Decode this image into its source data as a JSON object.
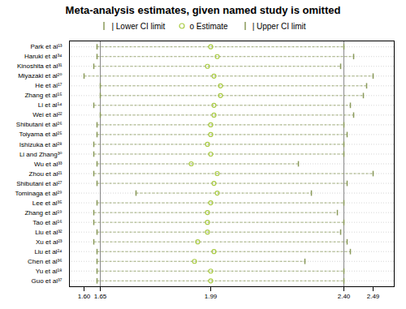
{
  "chart_data": {
    "type": "forest",
    "title": "Meta-analysis estimates, given named study is omitted",
    "orientation": "horizontal",
    "categories": [
      "Park et al¹³",
      "Haruki et al³⁴",
      "Kinoshita et al³¹",
      "Miyazaki et al²⁰",
      "He et al¹⁷",
      "Zhang et al¹⁵",
      "Li et al¹⁴",
      "Wei et al²²",
      "Shibutani et al²⁶",
      "Toiyama et al²⁵",
      "Ishizuka et al²⁸",
      "Li and Zhang³⁰",
      "Wu et al³³",
      "Zhou et al²¹",
      "Shibutani et al²⁷",
      "Tominaga et al²⁹",
      "Lee et al³⁵",
      "Zhang et al¹⁹",
      "Tao et al¹⁶",
      "Liu et al³²",
      "Xu et al²³",
      "Liu et al²⁴",
      "Chen et al³⁶",
      "Yu et al¹⁸",
      "Guo et al³⁷"
    ],
    "series": [
      {
        "name": "| Lower CI limit",
        "color": "#8a9a5a",
        "marker": "tick",
        "values": [
          1.64,
          1.64,
          1.63,
          1.6,
          1.65,
          1.65,
          1.63,
          1.65,
          1.64,
          1.64,
          1.63,
          1.63,
          1.64,
          1.63,
          1.64,
          1.76,
          1.64,
          1.63,
          1.63,
          1.64,
          1.63,
          1.64,
          1.64,
          1.64,
          1.64
        ]
      },
      {
        "name": "o Estimate",
        "color": "#aacc44",
        "marker": "circle",
        "values": [
          1.99,
          2.01,
          1.98,
          2.0,
          2.02,
          2.02,
          2.0,
          2.0,
          1.99,
          1.99,
          1.98,
          1.99,
          1.93,
          2.01,
          2.0,
          2.01,
          1.99,
          1.98,
          1.98,
          1.98,
          1.95,
          2.0,
          1.94,
          1.99,
          1.99
        ]
      },
      {
        "name": "| Upper CI limit",
        "color": "#8a9a5a",
        "marker": "tick",
        "values": [
          2.4,
          2.43,
          2.39,
          2.49,
          2.47,
          2.46,
          2.42,
          2.43,
          2.4,
          2.41,
          2.4,
          2.4,
          2.26,
          2.49,
          2.41,
          2.3,
          2.4,
          2.38,
          2.4,
          2.39,
          2.41,
          2.42,
          2.28,
          2.4,
          2.4
        ]
      }
    ],
    "line_style": "dashed",
    "reference_lines": [
      1.65,
      2.4
    ],
    "xlim": [
      1.555,
      2.555
    ],
    "xticks": [
      {
        "value": 1.6,
        "label": "1.60"
      },
      1.65,
      1.99,
      {
        "value": 2.4,
        "label": "2.40"
      },
      2.49
    ],
    "grid": true,
    "legend": "top"
  }
}
